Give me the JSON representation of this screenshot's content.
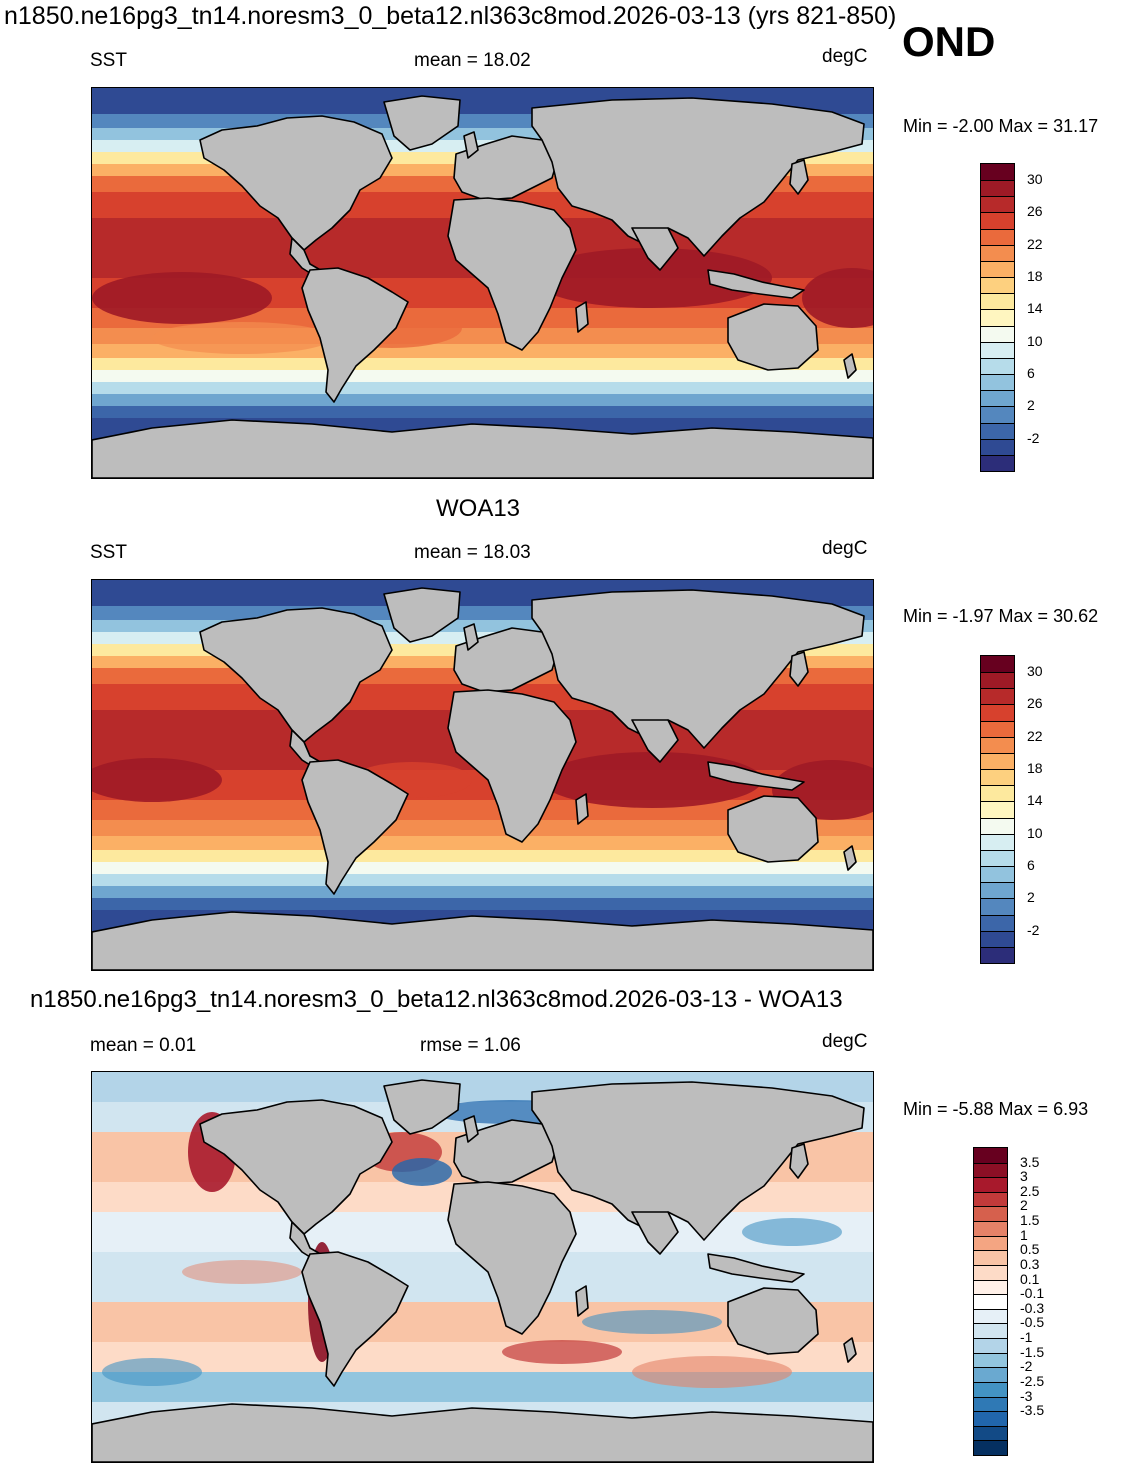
{
  "title": "n1850.ne16pg3_tn14.noresm3_0_beta12.nl363c8mod.2026-03-13 (yrs 821-850)",
  "season": "OND",
  "panels": [
    {
      "id": "model",
      "subtitle": "",
      "variable": "SST",
      "stat_text": "mean =  18.02",
      "units": "degC",
      "minmax": "Min =  -2.00 Max =  31.17",
      "colorbar_labels": [
        "30",
        "26",
        "22",
        "18",
        "14",
        "10",
        "6",
        "2",
        "-2"
      ],
      "colorbar_colors": [
        "#67001f",
        "#9e1a26",
        "#b72a2a",
        "#d7412d",
        "#ea6a3c",
        "#f38d4f",
        "#fbb065",
        "#fdd07f",
        "#fde99e",
        "#fff6c0",
        "#f4faf0",
        "#d7eef2",
        "#b6dcea",
        "#92c3de",
        "#6fa6cf",
        "#5487be",
        "#3c66a9",
        "#2f4a93",
        "#2c2d79"
      ]
    },
    {
      "id": "obs",
      "subtitle": "WOA13",
      "variable": "SST",
      "stat_text": "mean =  18.03",
      "units": "degC",
      "minmax": "Min =  -1.97 Max =  30.62",
      "colorbar_labels": [
        "30",
        "26",
        "22",
        "18",
        "14",
        "10",
        "6",
        "2",
        "-2"
      ],
      "colorbar_colors": [
        "#67001f",
        "#9e1a26",
        "#b72a2a",
        "#d7412d",
        "#ea6a3c",
        "#f38d4f",
        "#fbb065",
        "#fdd07f",
        "#fde99e",
        "#fff6c0",
        "#f4faf0",
        "#d7eef2",
        "#b6dcea",
        "#92c3de",
        "#6fa6cf",
        "#5487be",
        "#3c66a9",
        "#2f4a93",
        "#2c2d79"
      ]
    },
    {
      "id": "diff",
      "subtitle": "n1850.ne16pg3_tn14.noresm3_0_beta12.nl363c8mod.2026-03-13 - WOA13",
      "variable": "mean =   0.01",
      "stat_text": "rmse =   1.06",
      "units": "degC",
      "minmax": "Min =  -5.88 Max =   6.93",
      "colorbar_labels": [
        "3.5",
        "3",
        "2.5",
        "2",
        "1.5",
        "1",
        "0.5",
        "0.3",
        "0.1",
        "-0.1",
        "-0.3",
        "-0.5",
        "-1",
        "-1.5",
        "-2",
        "-2.5",
        "-3",
        "-3.5"
      ],
      "colorbar_colors": [
        "#67001f",
        "#8b0f25",
        "#a8192c",
        "#c23a3a",
        "#d6604d",
        "#e58268",
        "#f4a582",
        "#f9c4a6",
        "#fddbc7",
        "#fff0e8",
        "#ffffff",
        "#e6f0f7",
        "#d1e5f0",
        "#b3d4e8",
        "#92c5de",
        "#6aa9d0",
        "#4393c3",
        "#2f79b5",
        "#2166ac",
        "#124a86",
        "#053061"
      ]
    }
  ]
}
